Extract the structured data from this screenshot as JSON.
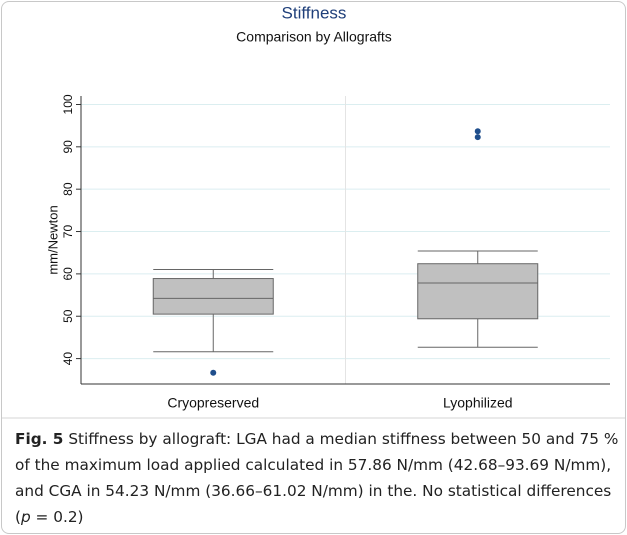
{
  "chart_data": {
    "type": "box",
    "title": "Stiffness",
    "subtitle": "Comparison by Allografts",
    "y_label": "mm/Newton",
    "categories": [
      "Cryopreserved",
      "Lyophilized"
    ],
    "boxes": [
      {
        "low": 41.6,
        "q1": 50.5,
        "median": 54.23,
        "q3": 58.9,
        "high": 61.02,
        "outliers": [
          36.66
        ]
      },
      {
        "low": 42.68,
        "q1": 49.4,
        "median": 57.86,
        "q3": 62.4,
        "high": 65.4,
        "outliers": [
          92.3,
          93.69
        ]
      }
    ],
    "color": "#c0c0c0",
    "outlier_color": "#1f4e8c",
    "ylim": [
      34,
      102
    ],
    "yticks": [
      40,
      50,
      60,
      70,
      80,
      90,
      100
    ],
    "grid": true
  },
  "caption": {
    "label": "Fig. 5",
    "text": "Stiffness by allograft: LGA had a median stiffness between 50 and 75 % of the maximum load applied calculated in 57.86 N/mm (42.68–93.69 N/mm), and CGA in 54.23 N/mm (36.66–61.02 N/mm) in the. No statistical differences (",
    "italic": "p",
    "after": " = 0.2)"
  }
}
